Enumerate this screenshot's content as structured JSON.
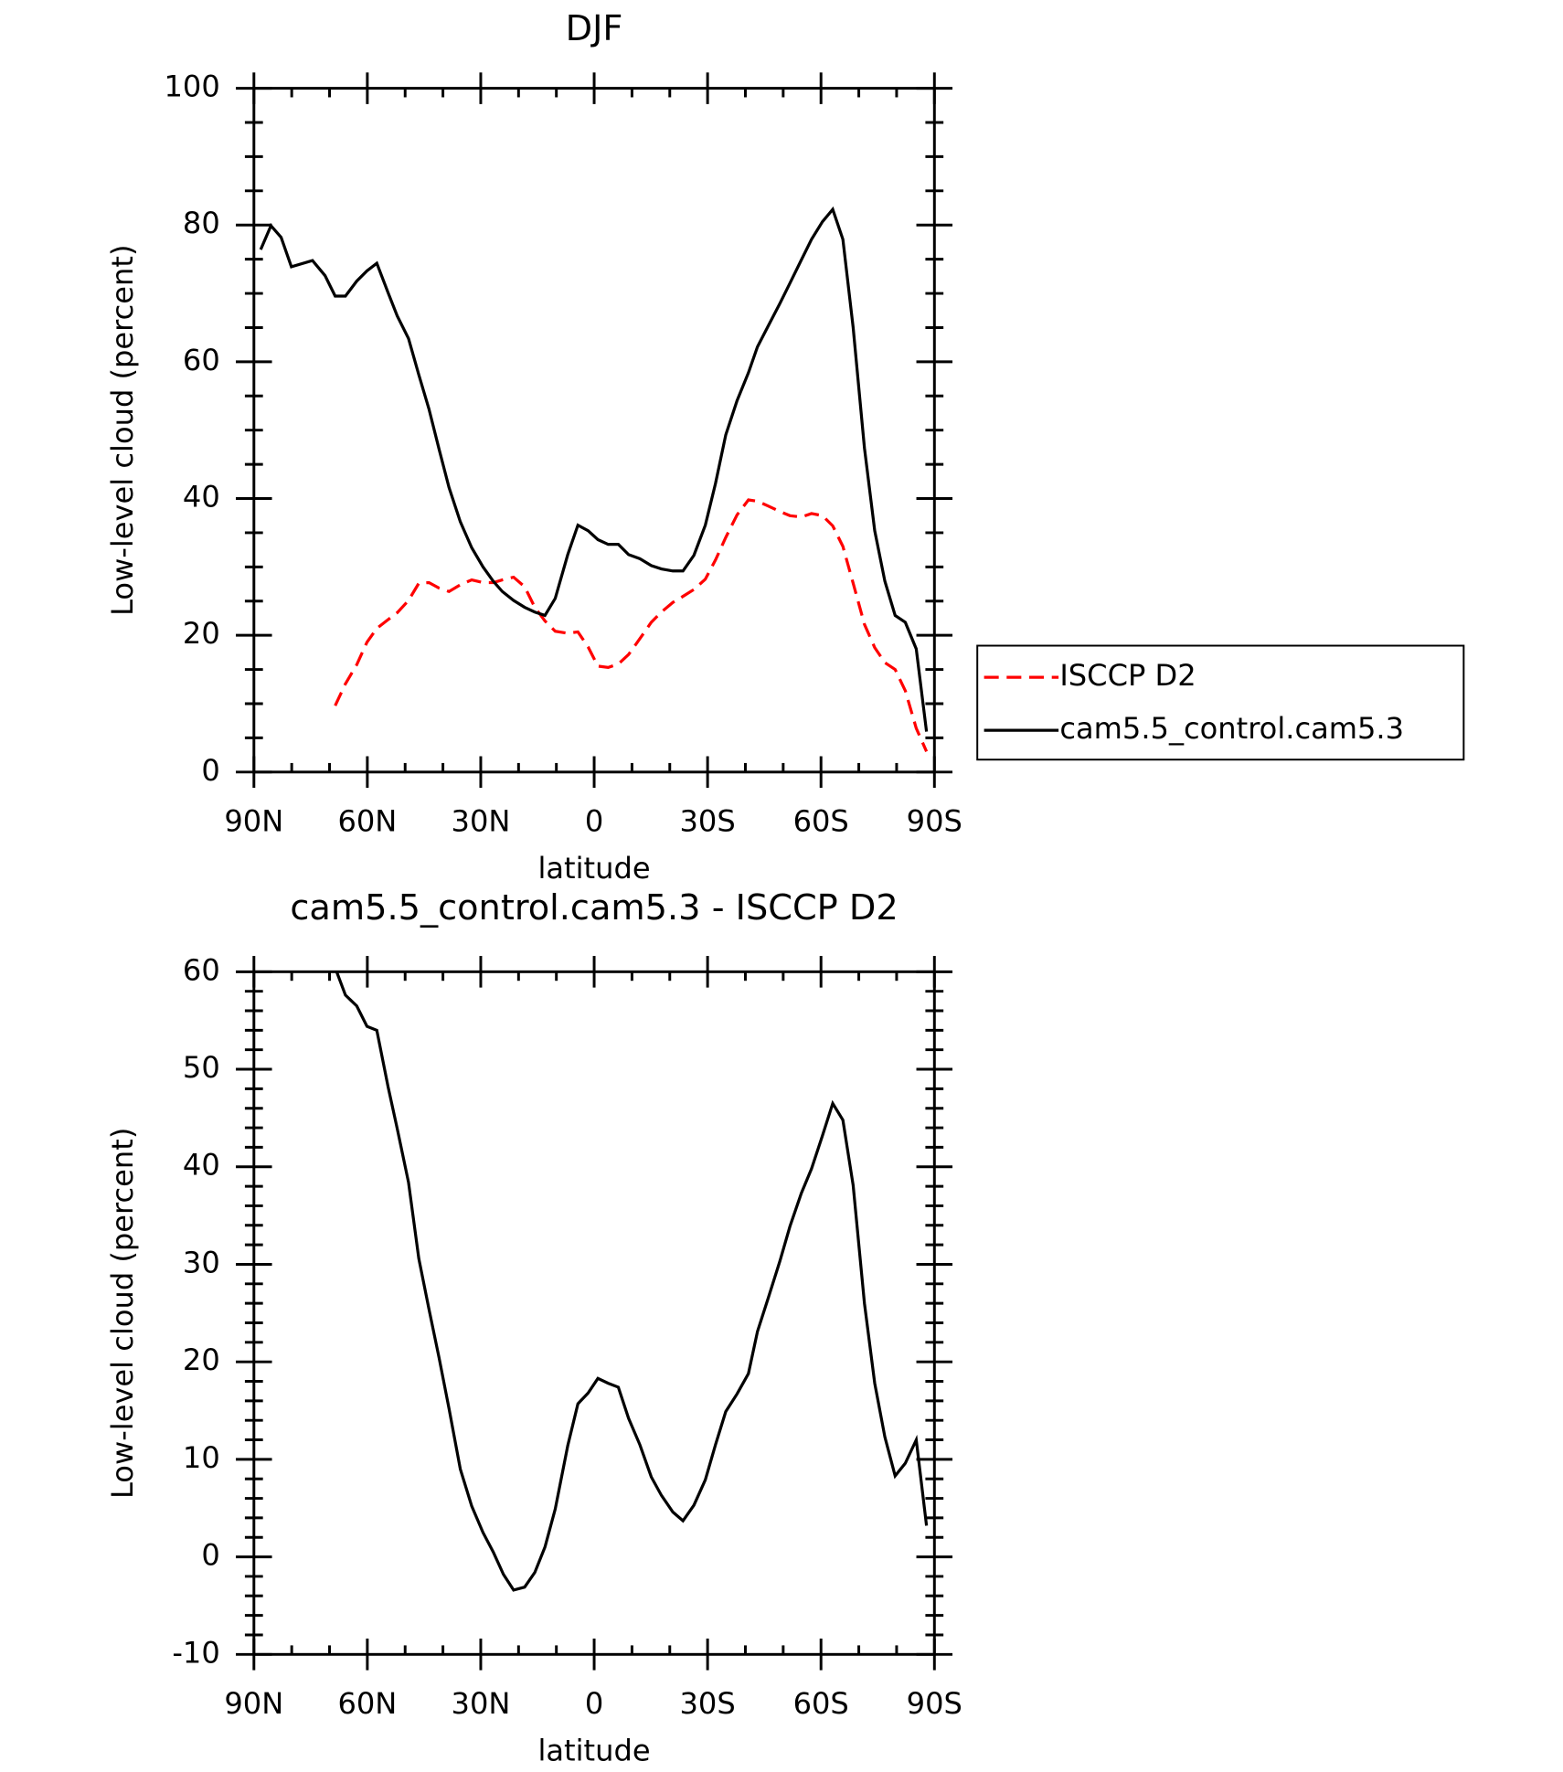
{
  "chart_data": [
    {
      "type": "line",
      "title": "DJF",
      "xlabel": "latitude",
      "ylabel": "Low-level cloud (percent)",
      "x": [
        88.2,
        85.5,
        82.8,
        80.1,
        74.5,
        71.2,
        68.5,
        65.8,
        62.8,
        60.1,
        57.5,
        54.5,
        52.1,
        49.1,
        46.4,
        43.7,
        41.0,
        38.4,
        35.4,
        32.4,
        29.4,
        26.7,
        24.3,
        21.3,
        18.4,
        15.7,
        13.0,
        10.3,
        7.0,
        4.3,
        1.6,
        -1.0,
        -3.7,
        -6.4,
        -9.1,
        -12.1,
        -15.1,
        -17.8,
        -20.8,
        -23.5,
        -26.4,
        -29.4,
        -32.1,
        -34.8,
        -37.8,
        -40.8,
        -43.2,
        -46.1,
        -49.1,
        -51.8,
        -54.8,
        -57.5,
        -60.4,
        -63.1,
        -65.8,
        -68.5,
        -71.5,
        -74.2,
        -76.9,
        -79.6,
        -82.3,
        -85.2,
        -87.9
      ],
      "series": [
        {
          "name": "ISCCP D2",
          "color": "#ff0000",
          "dashed": true,
          "values": [
            null,
            null,
            null,
            null,
            null,
            null,
            9.7,
            12.9,
            15.7,
            19.0,
            21.0,
            22.3,
            23.3,
            25.1,
            27.6,
            27.7,
            26.9,
            26.4,
            27.4,
            28.1,
            27.7,
            27.7,
            28.1,
            28.5,
            27.1,
            24.1,
            22.1,
            20.6,
            20.3,
            20.5,
            18.3,
            15.5,
            15.3,
            15.8,
            17.2,
            19.5,
            21.9,
            23.4,
            24.8,
            25.7,
            26.7,
            28.2,
            31.0,
            34.3,
            37.6,
            39.8,
            39.6,
            38.9,
            38.1,
            37.5,
            37.3,
            37.8,
            37.5,
            36.0,
            33.0,
            27.6,
            21.6,
            18.2,
            16.0,
            15.0,
            11.9,
            6.4,
            3.0
          ]
        },
        {
          "name": "cam5.5_control.cam5.3",
          "color": "#000000",
          "dashed": false,
          "values": [
            76.4,
            79.9,
            78.2,
            73.9,
            74.8,
            72.6,
            69.6,
            69.6,
            71.8,
            73.3,
            74.4,
            70.1,
            66.7,
            63.4,
            58.1,
            53.1,
            47.2,
            41.6,
            36.6,
            32.8,
            30.0,
            27.9,
            26.4,
            25.1,
            24.1,
            23.4,
            22.9,
            25.4,
            31.8,
            36.1,
            35.3,
            34.0,
            33.3,
            33.3,
            31.8,
            31.2,
            30.2,
            29.7,
            29.4,
            29.4,
            31.7,
            36.1,
            42.2,
            49.3,
            54.3,
            58.4,
            62.2,
            65.3,
            68.5,
            71.5,
            74.9,
            77.9,
            80.5,
            82.3,
            77.9,
            65.0,
            47.4,
            35.3,
            27.9,
            22.9,
            21.9,
            18.0,
            5.9
          ]
        }
      ],
      "xlim": [
        90,
        -90
      ],
      "xticks": [
        {
          "value": 90,
          "label": "90N"
        },
        {
          "value": 60,
          "label": "60N"
        },
        {
          "value": 30,
          "label": "30N"
        },
        0,
        {
          "value": -30,
          "label": "30S"
        },
        {
          "value": -60,
          "label": "60S"
        },
        {
          "value": -90,
          "label": "90S"
        }
      ],
      "xminorticks": [
        80,
        70,
        50,
        40,
        20,
        10,
        -10,
        -20,
        -40,
        -50,
        -70,
        -80
      ],
      "ylim": [
        0,
        100
      ],
      "yticks": [
        0,
        20,
        40,
        60,
        80,
        100
      ],
      "yminorticks": [
        5,
        10,
        15,
        25,
        30,
        35,
        45,
        50,
        55,
        65,
        70,
        75,
        85,
        90,
        95
      ],
      "legend": "right"
    },
    {
      "type": "line",
      "title": "cam5.5_control.cam5.3 - ISCCP D2",
      "xlabel": "latitude",
      "ylabel": "Low-level cloud (percent)",
      "x": [
        68.5,
        65.8,
        62.8,
        60.1,
        57.5,
        54.5,
        52.1,
        49.1,
        46.4,
        43.7,
        41.0,
        38.4,
        35.4,
        32.4,
        29.4,
        26.7,
        24.0,
        21.3,
        18.4,
        15.7,
        13.0,
        10.3,
        7.0,
        4.3,
        1.6,
        -1.0,
        -3.7,
        -6.4,
        -9.1,
        -12.1,
        -15.1,
        -17.8,
        -20.8,
        -23.5,
        -26.4,
        -29.4,
        -32.1,
        -34.8,
        -37.8,
        -40.8,
        -43.2,
        -46.1,
        -49.1,
        -51.8,
        -54.8,
        -57.5,
        -60.4,
        -63.1,
        -65.8,
        -68.5,
        -71.5,
        -74.2,
        -76.9,
        -79.6,
        -82.3,
        -85.2,
        -87.9
      ],
      "series": [
        {
          "name": "cam5.5_control.cam5.3 - ISCCP D2",
          "color": "#000000",
          "dashed": false,
          "values": [
            60.4,
            57.6,
            56.5,
            54.4,
            54.0,
            48.2,
            43.9,
            38.4,
            30.6,
            25.4,
            20.4,
            15.2,
            9.0,
            5.2,
            2.5,
            0.5,
            -1.8,
            -3.4,
            -3.1,
            -1.6,
            1.0,
            4.9,
            11.4,
            15.7,
            16.8,
            18.3,
            17.8,
            17.4,
            14.2,
            11.5,
            8.2,
            6.3,
            4.6,
            3.7,
            5.3,
            7.9,
            11.5,
            14.9,
            16.7,
            18.8,
            23.1,
            26.6,
            30.3,
            33.9,
            37.3,
            39.8,
            43.2,
            46.5,
            44.8,
            38.1,
            26.0,
            17.8,
            12.3,
            8.3,
            9.6,
            12.0,
            3.2
          ]
        }
      ],
      "xlim": [
        90,
        -90
      ],
      "xticks": [
        {
          "value": 90,
          "label": "90N"
        },
        {
          "value": 60,
          "label": "60N"
        },
        {
          "value": 30,
          "label": "30N"
        },
        0,
        {
          "value": -30,
          "label": "30S"
        },
        {
          "value": -60,
          "label": "60S"
        },
        {
          "value": -90,
          "label": "90S"
        }
      ],
      "xminorticks": [
        80,
        70,
        50,
        40,
        20,
        10,
        -10,
        -20,
        -40,
        -50,
        -70,
        -80
      ],
      "ylim": [
        -10,
        60
      ],
      "yticks": [
        -10,
        0,
        10,
        20,
        30,
        40,
        50,
        60
      ],
      "yminorticks": [
        -8,
        -6,
        -4,
        -2,
        2,
        4,
        6,
        8,
        12,
        14,
        16,
        18,
        22,
        24,
        26,
        28,
        32,
        34,
        36,
        38,
        42,
        44,
        46,
        48,
        52,
        54,
        56,
        58
      ]
    }
  ]
}
